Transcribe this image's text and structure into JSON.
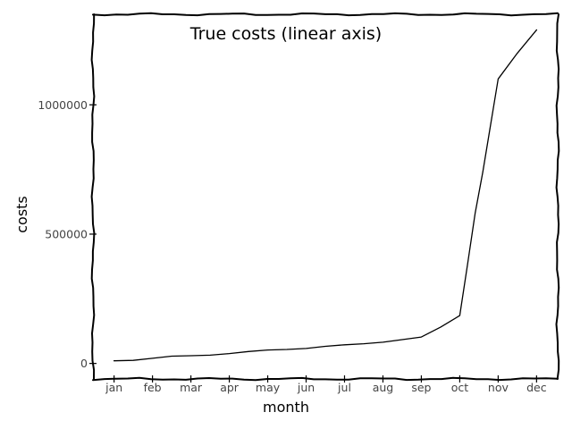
{
  "chart_data": {
    "type": "line",
    "title": "True costs (linear axis)",
    "xlabel": "month",
    "ylabel": "costs",
    "categories": [
      "jan",
      "feb",
      "mar",
      "apr",
      "may",
      "jun",
      "jul",
      "aug",
      "sep",
      "oct",
      "nov",
      "dec"
    ],
    "x_ticks": [
      "jan",
      "feb",
      "mar",
      "apr",
      "may",
      "jun",
      "jul",
      "aug",
      "sep",
      "oct",
      "nov",
      "dec"
    ],
    "y_ticks": [
      {
        "value": 0,
        "label": "0"
      },
      {
        "value": 500000,
        "label": "500000"
      },
      {
        "value": 1000000,
        "label": "1000000"
      }
    ],
    "ylim": [
      -60000,
      1350000
    ],
    "xlim": [
      -0.55,
      11.55
    ],
    "grid": false,
    "legend": "none",
    "style": "hand-drawn",
    "line_color": "#000000",
    "series": [
      {
        "x": [
          0,
          0.5,
          1,
          1.5,
          2,
          2.5,
          3,
          3.5,
          4,
          4.5,
          5,
          5.5,
          6,
          6.5,
          7,
          7.5,
          8,
          8.5,
          9,
          9.2,
          9.4,
          9.6,
          9.8,
          10,
          10.5,
          11
        ],
        "values": [
          10000,
          12000,
          20000,
          28000,
          30000,
          32000,
          38000,
          46000,
          52000,
          54000,
          58000,
          66000,
          72000,
          76000,
          82000,
          92000,
          102000,
          140000,
          185000,
          380000,
          580000,
          740000,
          920000,
          1100000,
          1200000,
          1290000
        ]
      }
    ]
  }
}
